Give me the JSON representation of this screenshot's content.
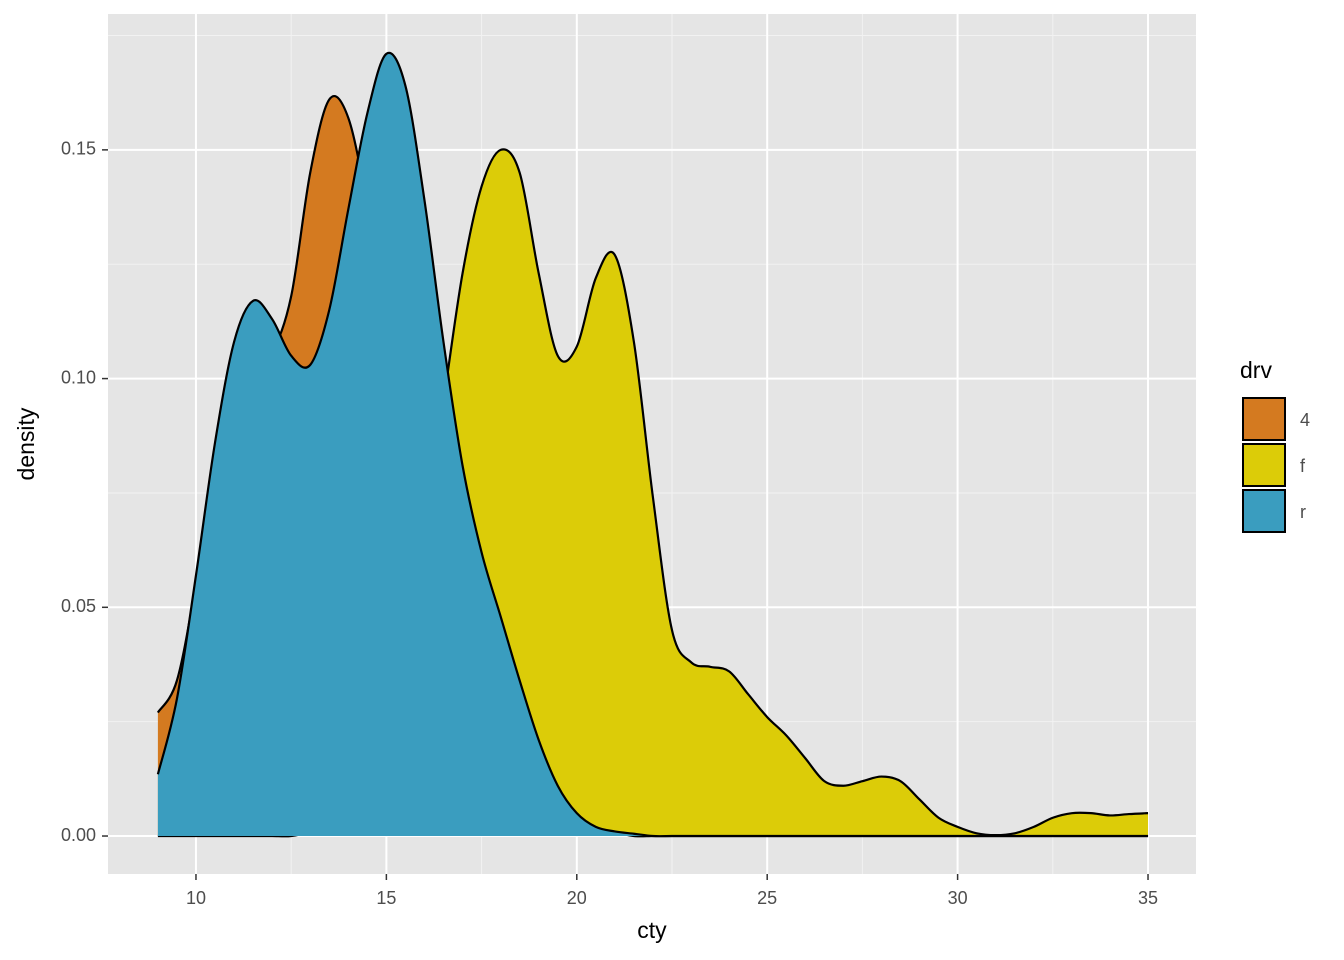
{
  "chart_data": {
    "type": "density",
    "x_label": "cty",
    "y_label": "density",
    "x": [
      9,
      9.5,
      10,
      10.5,
      11,
      11.5,
      12,
      12.5,
      13,
      13.5,
      14,
      14.5,
      15,
      15.5,
      16,
      16.5,
      17,
      17.5,
      18,
      18.5,
      19,
      19.5,
      20,
      20.5,
      21,
      21.5,
      22,
      22.5,
      23,
      23.5,
      24,
      24.5,
      25,
      25.5,
      26,
      26.5,
      27,
      27.5,
      28,
      28.5,
      29,
      29.5,
      30,
      30.5,
      31,
      31.5,
      32,
      32.5,
      33,
      33.5,
      34,
      34.5,
      35
    ],
    "series": [
      {
        "name": "4",
        "color": "#d47a20",
        "values": [
          0.027,
          0.034,
          0.055,
          0.08,
          0.097,
          0.104,
          0.106,
          0.118,
          0.145,
          0.161,
          0.157,
          0.138,
          0.115,
          0.095,
          0.08,
          0.07,
          0.06,
          0.05,
          0.04,
          0.03,
          0.021,
          0.013,
          0.007,
          0.003,
          0.001,
          0,
          0,
          0,
          0,
          0,
          0,
          0,
          0,
          0,
          0,
          0,
          0,
          0,
          0,
          0,
          0,
          0,
          0,
          0,
          0,
          0,
          0,
          0,
          0,
          0,
          0,
          0,
          0
        ]
      },
      {
        "name": "f",
        "color": "#dccc08",
        "values": [
          0,
          0,
          0,
          0,
          0,
          0,
          0,
          0,
          0.001,
          0.003,
          0.007,
          0.015,
          0.028,
          0.045,
          0.068,
          0.095,
          0.123,
          0.142,
          0.15,
          0.145,
          0.123,
          0.105,
          0.107,
          0.122,
          0.127,
          0.108,
          0.074,
          0.045,
          0.038,
          0.037,
          0.036,
          0.031,
          0.026,
          0.022,
          0.017,
          0.012,
          0.011,
          0.012,
          0.013,
          0.012,
          0.008,
          0.004,
          0.002,
          0.0006,
          0.0002,
          0.0006,
          0.002,
          0.004,
          0.005,
          0.005,
          0.0045,
          0.0048,
          0.005
        ]
      },
      {
        "name": "r",
        "color": "#3a9dbf",
        "values": [
          0.0135,
          0.03,
          0.057,
          0.086,
          0.108,
          0.117,
          0.113,
          0.105,
          0.103,
          0.115,
          0.137,
          0.158,
          0.171,
          0.164,
          0.139,
          0.108,
          0.081,
          0.062,
          0.048,
          0.034,
          0.021,
          0.011,
          0.005,
          0.002,
          0.001,
          0.0005,
          0,
          0,
          0,
          0,
          0,
          0,
          0,
          0,
          0,
          0,
          0,
          0,
          0,
          0,
          0,
          0,
          0,
          0,
          0,
          0,
          0,
          0,
          0,
          0,
          0,
          0,
          0
        ]
      }
    ],
    "legend_title": "drv",
    "xlim": [
      7.69,
      36.26
    ],
    "ylim": [
      -0.0083,
      0.1797
    ],
    "xticks": [
      10,
      15,
      20,
      25,
      30,
      35
    ],
    "yticks": [
      {
        "value": 0,
        "label": "0.00"
      },
      {
        "value": 0.05,
        "label": "0.05"
      },
      {
        "value": 0.1,
        "label": "0.10"
      },
      {
        "value": 0.15,
        "label": "0.15"
      }
    ],
    "grid": true
  }
}
